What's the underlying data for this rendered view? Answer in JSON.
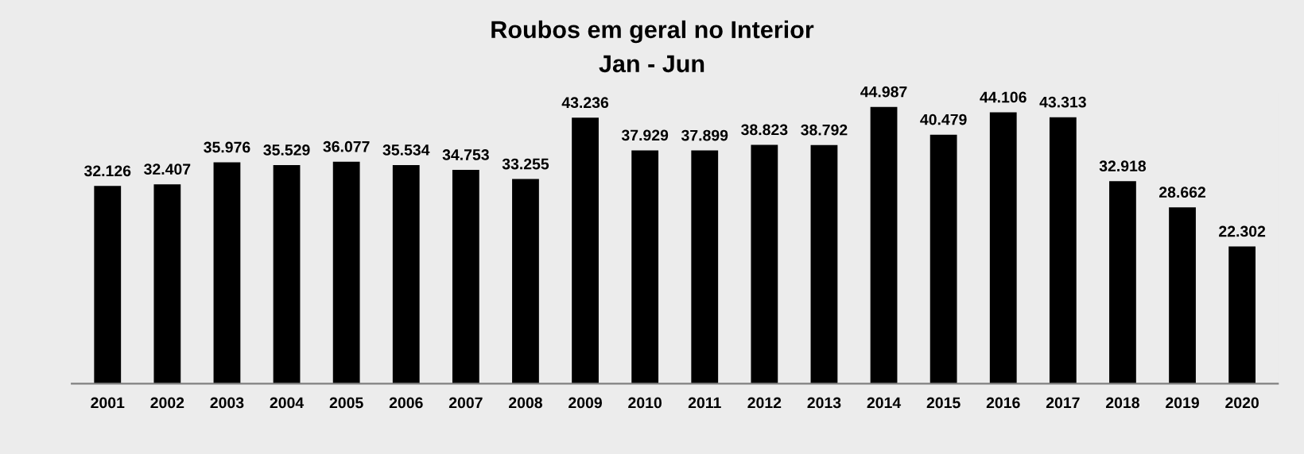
{
  "chart_data": {
    "type": "bar",
    "title": "Roubos em geral no Interior",
    "subtitle": "Jan - Jun",
    "categories": [
      "2001",
      "2002",
      "2003",
      "2004",
      "2005",
      "2006",
      "2007",
      "2008",
      "2009",
      "2010",
      "2011",
      "2012",
      "2013",
      "2014",
      "2015",
      "2016",
      "2017",
      "2018",
      "2019",
      "2020"
    ],
    "values": [
      32126,
      32407,
      35976,
      35529,
      36077,
      35534,
      34753,
      33255,
      43236,
      37929,
      37899,
      38823,
      38792,
      44987,
      40479,
      44106,
      43313,
      32918,
      28662,
      22302
    ],
    "value_labels": [
      "32.126",
      "32.407",
      "35.976",
      "35.529",
      "36.077",
      "35.534",
      "34.753",
      "33.255",
      "43.236",
      "37.929",
      "37.899",
      "38.823",
      "38.792",
      "44.987",
      "40.479",
      "44.106",
      "43.313",
      "32.918",
      "28.662",
      "22.302"
    ],
    "color": "#000000"
  }
}
